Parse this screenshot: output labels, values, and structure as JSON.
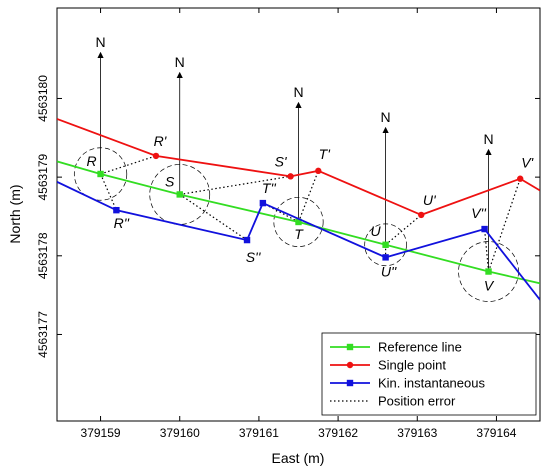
{
  "chart_data": {
    "type": "line",
    "xlabel": "East (m)",
    "ylabel": "North (m)",
    "xlim": [
      379158.45,
      379164.55
    ],
    "ylim": [
      4563175.9,
      4563181.15
    ],
    "xticks": [
      "379159",
      "379160",
      "379161",
      "379162",
      "379163",
      "379164"
    ],
    "xtick_values": [
      379159,
      379160,
      379161,
      379162,
      379163,
      379164
    ],
    "yticks": [
      "4563177",
      "4563178",
      "4563179",
      "4563180"
    ],
    "ytick_values": [
      4563177,
      4563178,
      4563179,
      4563180
    ],
    "grid": false,
    "legend_position": "bottom-right",
    "colors": {
      "reference": "#33dd22",
      "single": "#ee1111",
      "kin": "#1111dd",
      "error": "#000000"
    },
    "series": [
      {
        "name": "Reference line",
        "key": "reference",
        "x": [
          379158.45,
          379159.0,
          379160.0,
          379161.5,
          379162.6,
          379163.9,
          379164.55
        ],
        "y": [
          4563179.2,
          4563179.04,
          4563178.78,
          4563178.43,
          4563178.14,
          4563177.8,
          4563177.65
        ],
        "markers": [
          1,
          2,
          3,
          4,
          5
        ]
      },
      {
        "name": "Single point",
        "key": "single",
        "x": [
          379158.45,
          379159.7,
          379161.4,
          379161.75,
          379163.05,
          379164.3,
          379164.55
        ],
        "y": [
          4563179.74,
          4563179.27,
          4563179.01,
          4563179.08,
          4563178.52,
          4563178.98,
          4563178.83
        ],
        "markers": [
          1,
          2,
          3,
          4,
          5
        ]
      },
      {
        "name": "Kin. instantaneous",
        "key": "kin",
        "x": [
          379158.45,
          379159.2,
          379160.85,
          379161.05,
          379162.6,
          379163.85,
          379164.55
        ],
        "y": [
          4563178.94,
          4563178.58,
          4563178.2,
          4563178.67,
          4563177.98,
          4563178.34,
          4563177.44
        ],
        "markers": [
          1,
          2,
          3,
          4,
          5
        ]
      }
    ],
    "points": [
      {
        "ref": "R",
        "single": "R'",
        "kin": "R''",
        "ref_xy": [
          379159.0,
          4563179.04
        ],
        "single_xy": [
          379159.7,
          4563179.27
        ],
        "kin_xy": [
          379159.2,
          4563178.58
        ]
      },
      {
        "ref": "S",
        "single": "S'",
        "kin": "S''",
        "ref_xy": [
          379160.0,
          4563178.78
        ],
        "single_xy": [
          379161.4,
          4563179.01
        ],
        "kin_xy": [
          379160.85,
          4563178.2
        ]
      },
      {
        "ref": "T",
        "single": "T'",
        "kin": "T''",
        "ref_xy": [
          379161.5,
          4563178.43
        ],
        "single_xy": [
          379161.75,
          4563179.08
        ],
        "kin_xy": [
          379161.05,
          4563178.67
        ]
      },
      {
        "ref": "U",
        "single": "U'",
        "kin": "U''",
        "ref_xy": [
          379162.6,
          4563178.14
        ],
        "single_xy": [
          379163.05,
          4563178.52
        ],
        "kin_xy": [
          379162.6,
          4563177.98
        ]
      },
      {
        "ref": "V",
        "single": "V'",
        "kin": "V''",
        "ref_xy": [
          379163.9,
          4563177.8
        ],
        "single_xy": [
          379164.3,
          4563178.98
        ],
        "kin_xy": [
          379163.85,
          4563178.34
        ]
      }
    ],
    "north_label": "N",
    "legend_error": "Position error"
  }
}
